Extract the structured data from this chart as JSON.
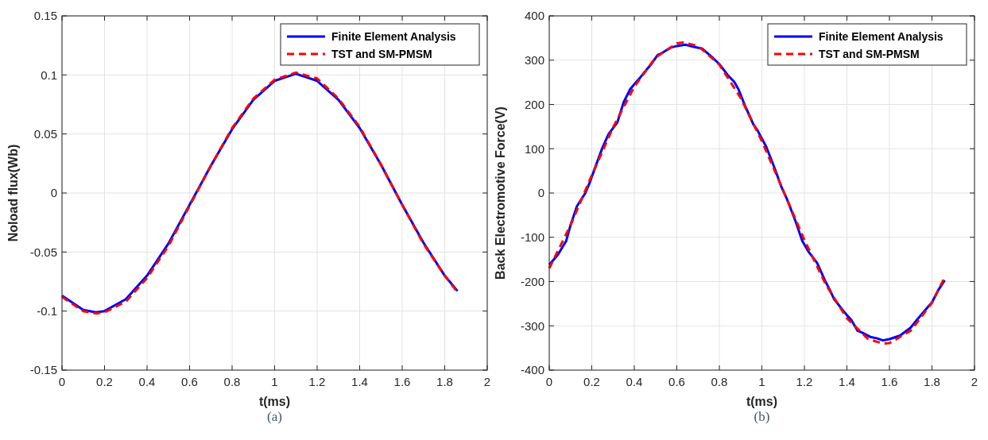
{
  "chart_data": [
    {
      "type": "line",
      "xlabel": "t(ms)",
      "ylabel": "Noload flux(Wb)",
      "annotations": [
        "(a)"
      ],
      "xlim": [
        0,
        2
      ],
      "xticks": [
        0,
        0.2,
        0.4,
        0.6,
        0.8,
        1,
        1.2,
        1.4,
        1.6,
        1.8,
        2
      ],
      "ylim": [
        -0.15,
        0.15
      ],
      "yticks": [
        -0.15,
        -0.1,
        -0.05,
        0,
        0.05,
        0.1,
        0.15
      ],
      "grid": true,
      "legend": "top right",
      "series": [
        {
          "name": "Finite Element Analysis",
          "color": "#0000ff",
          "line_style": "solid",
          "x": [
            0,
            0.1,
            0.16,
            0.2,
            0.3,
            0.4,
            0.5,
            0.6,
            0.7,
            0.8,
            0.9,
            1,
            1.1,
            1.2,
            1.3,
            1.4,
            1.5,
            1.6,
            1.7,
            1.8,
            1.86
          ],
          "values": [
            -0.087,
            -0.099,
            -0.101,
            -0.1,
            -0.09,
            -0.07,
            -0.043,
            -0.01,
            0.023,
            0.054,
            0.079,
            0.095,
            0.101,
            0.095,
            0.079,
            0.055,
            0.024,
            -0.01,
            -0.042,
            -0.07,
            -0.083
          ]
        },
        {
          "name": "TST and SM-PMSM",
          "color": "#ff0000",
          "line_style": "dashed",
          "x": [
            0,
            0.1,
            0.16,
            0.2,
            0.3,
            0.4,
            0.5,
            0.6,
            0.7,
            0.8,
            0.9,
            1,
            1.1,
            1.2,
            1.3,
            1.4,
            1.5,
            1.6,
            1.7,
            1.8,
            1.86
          ],
          "values": [
            -0.088,
            -0.1,
            -0.102,
            -0.101,
            -0.092,
            -0.072,
            -0.045,
            -0.011,
            0.023,
            0.055,
            0.08,
            0.096,
            0.102,
            0.097,
            0.08,
            0.056,
            0.024,
            -0.01,
            -0.043,
            -0.07,
            -0.084
          ]
        }
      ]
    },
    {
      "type": "line",
      "xlabel": "t(ms)",
      "ylabel": "Back Electromotive Force(V)",
      "annotations": [
        "(b)"
      ],
      "xlim": [
        0,
        2
      ],
      "xticks": [
        0,
        0.2,
        0.4,
        0.6,
        0.8,
        1,
        1.2,
        1.4,
        1.6,
        1.8,
        2
      ],
      "ylim": [
        -400,
        400
      ],
      "yticks": [
        -400,
        -300,
        -200,
        -100,
        0,
        100,
        200,
        300,
        400
      ],
      "grid": true,
      "legend": "top right",
      "series": [
        {
          "name": "Finite Element Analysis",
          "color": "#0000ff",
          "line_style": "solid",
          "x": [
            0,
            0.04,
            0.08,
            0.1,
            0.13,
            0.17,
            0.19,
            0.22,
            0.25,
            0.28,
            0.32,
            0.35,
            0.38,
            0.41,
            0.43,
            0.46,
            0.48,
            0.51,
            0.53,
            0.57,
            0.6,
            0.64,
            0.68,
            0.72,
            0.77,
            0.8,
            0.84,
            0.87,
            0.89,
            0.92,
            0.96,
            0.98,
            1.02,
            1.06,
            1.09,
            1.12,
            1.16,
            1.19,
            1.22,
            1.26,
            1.3,
            1.32,
            1.34,
            1.37,
            1.4,
            1.42,
            1.45,
            1.47,
            1.51,
            1.54,
            1.57,
            1.6,
            1.65,
            1.7,
            1.73,
            1.78,
            1.8,
            1.83,
            1.86
          ],
          "values": [
            -162,
            -140,
            -108,
            -73,
            -30,
            0,
            23,
            63,
            102,
            134,
            159,
            205,
            234,
            251,
            262,
            280,
            291,
            312,
            316,
            328,
            332,
            335,
            330,
            326,
            305,
            291,
            266,
            251,
            234,
            198,
            155,
            141,
            105,
            56,
            16,
            -16,
            -66,
            -108,
            -133,
            -158,
            -201,
            -219,
            -240,
            -258,
            -276,
            -286,
            -311,
            -315,
            -325,
            -328,
            -333,
            -330,
            -322,
            -304,
            -286,
            -258,
            -247,
            -219,
            -197
          ]
        },
        {
          "name": "TST and SM-PMSM",
          "color": "#ff0000",
          "line_style": "dashed",
          "x": [
            0,
            0.1,
            0.2,
            0.3,
            0.4,
            0.5,
            0.6,
            0.63,
            0.7,
            0.8,
            0.9,
            1,
            1.1,
            1.2,
            1.3,
            1.4,
            1.5,
            1.57,
            1.6,
            1.7,
            1.8,
            1.86
          ],
          "values": [
            -170,
            -73,
            40,
            148,
            240,
            306,
            338,
            340,
            332,
            290,
            215,
            117,
            6,
            -106,
            -206,
            -283,
            -330,
            -340,
            -339,
            -311,
            -248,
            -190
          ]
        }
      ]
    }
  ]
}
